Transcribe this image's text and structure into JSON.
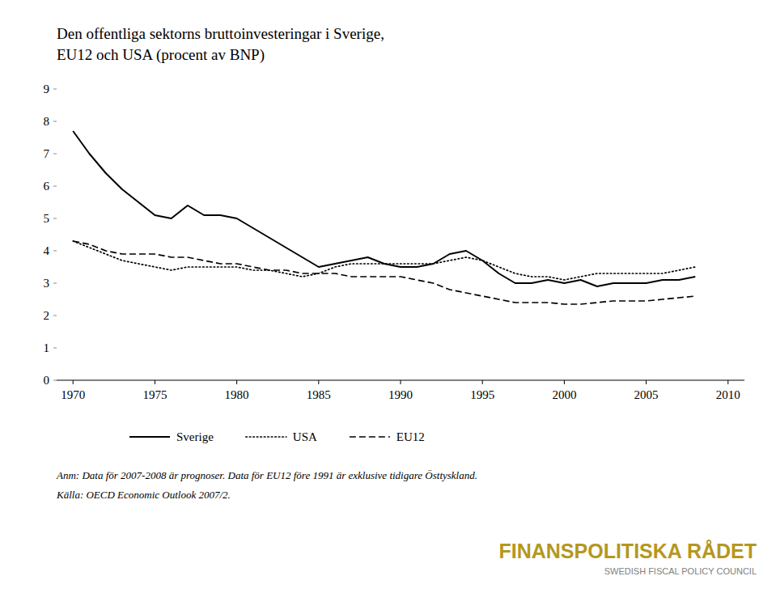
{
  "chart_data": {
    "type": "line",
    "title": "Den offentliga sektorns bruttoinvesteringar i Sverige,",
    "subtitle": "EU12 och USA (procent av BNP)",
    "annotations": [
      {
        "text": "Anm: Data för 2007-2008 är prognoser. Data för EU12 före 1991 är exklusive tidigare Östtyskland."
      },
      {
        "text": "Källa: OECD Economic Outlook 2007/2."
      },
      {
        "text": "FINANSPOLITISKA RÅDET",
        "color": "#b5971e"
      },
      {
        "text": "SWEDISH FISCAL POLICY COUNCIL",
        "color": "#808080"
      }
    ],
    "x": [
      1970,
      1971,
      1972,
      1973,
      1974,
      1975,
      1976,
      1977,
      1978,
      1979,
      1980,
      1981,
      1982,
      1983,
      1984,
      1985,
      1986,
      1987,
      1988,
      1989,
      1990,
      1991,
      1992,
      1993,
      1994,
      1995,
      1996,
      1997,
      1998,
      1999,
      2000,
      2001,
      2002,
      2003,
      2004,
      2005,
      2006,
      2007,
      2008
    ],
    "series": [
      {
        "name": "Sverige",
        "color": "#000000",
        "line_style": "solid",
        "values": [
          7.7,
          7.0,
          6.4,
          5.9,
          5.5,
          5.1,
          5.0,
          5.4,
          5.1,
          5.1,
          5.0,
          4.7,
          4.4,
          4.1,
          3.8,
          3.5,
          3.6,
          3.7,
          3.8,
          3.6,
          3.5,
          3.5,
          3.6,
          3.9,
          4.0,
          3.7,
          3.3,
          3.0,
          3.0,
          3.1,
          3.0,
          3.1,
          2.9,
          3.0,
          3.0,
          3.0,
          3.1,
          3.1,
          3.2
        ]
      },
      {
        "name": "USA",
        "color": "#000000",
        "line_style": "dotted",
        "values": [
          4.3,
          4.1,
          3.9,
          3.7,
          3.6,
          3.5,
          3.4,
          3.5,
          3.5,
          3.5,
          3.5,
          3.4,
          3.4,
          3.3,
          3.2,
          3.3,
          3.5,
          3.6,
          3.6,
          3.6,
          3.6,
          3.6,
          3.6,
          3.7,
          3.8,
          3.7,
          3.5,
          3.3,
          3.2,
          3.2,
          3.1,
          3.2,
          3.3,
          3.3,
          3.3,
          3.3,
          3.3,
          3.4,
          3.5
        ]
      },
      {
        "name": "EU12",
        "color": "#000000",
        "line_style": "dashed",
        "values": [
          4.3,
          4.2,
          4.0,
          3.9,
          3.9,
          3.9,
          3.8,
          3.8,
          3.7,
          3.6,
          3.6,
          3.5,
          3.4,
          3.4,
          3.3,
          3.3,
          3.3,
          3.2,
          3.2,
          3.2,
          3.2,
          3.1,
          3.0,
          2.8,
          2.7,
          2.6,
          2.5,
          2.4,
          2.4,
          2.4,
          2.35,
          2.35,
          2.4,
          2.45,
          2.45,
          2.45,
          2.5,
          2.55,
          2.6
        ]
      }
    ],
    "xlim": [
      1969,
      2011
    ],
    "ylim": [
      0,
      9
    ],
    "xticks": [
      1970,
      1975,
      1980,
      1985,
      1990,
      1995,
      2000,
      2005,
      2010
    ],
    "yticks": [
      0,
      1,
      2,
      3,
      4,
      5,
      6,
      7,
      8,
      9
    ],
    "grid": false,
    "legend": "bottom"
  }
}
